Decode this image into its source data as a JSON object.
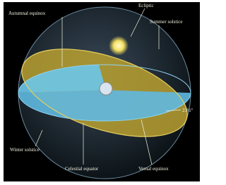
{
  "labels": {
    "autumnal_equinox": "Autumnal equinox",
    "ecliptic": "Ecliptic",
    "summer_solstice": "Summer solstice",
    "tilt": "23½°",
    "winter_solstice": "Winter solstice",
    "celestial_equator": "Celestial equator",
    "vernal_equinox": "Vernal equinox"
  }
}
